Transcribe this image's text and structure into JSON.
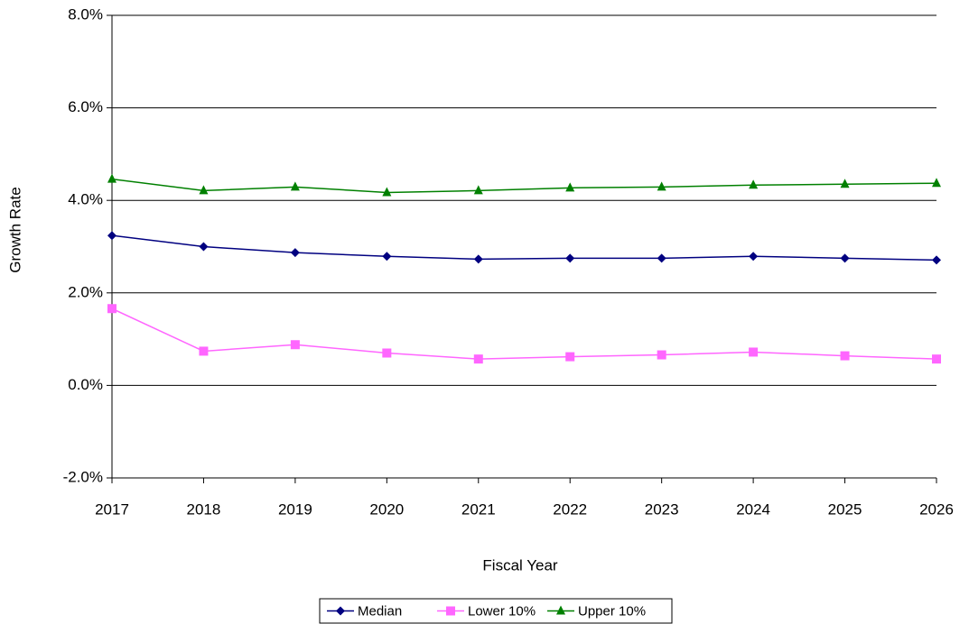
{
  "chart_data": {
    "type": "line",
    "x_label": "Fiscal Year",
    "y_label": "Growth Rate",
    "x": [
      2017,
      2018,
      2019,
      2020,
      2021,
      2022,
      2023,
      2024,
      2025,
      2026
    ],
    "xlim": [
      2017,
      2026
    ],
    "xticks": [
      2017,
      2018,
      2019,
      2020,
      2021,
      2022,
      2023,
      2024,
      2025,
      2026
    ],
    "ylim": [
      -2,
      8
    ],
    "yticks": [
      {
        "value": -2,
        "label": "-2.0%"
      },
      {
        "value": 0,
        "label": "0.0%"
      },
      {
        "value": 2,
        "label": "2.0%"
      },
      {
        "value": 4,
        "label": "4.0%"
      },
      {
        "value": 6,
        "label": "6.0%"
      },
      {
        "value": 8,
        "label": "8.0%"
      }
    ],
    "grid": true,
    "legend": "bottom",
    "series": [
      {
        "name": "Median",
        "color": "#000080",
        "marker": "diamond",
        "values": [
          3.24,
          3.0,
          2.87,
          2.79,
          2.73,
          2.75,
          2.75,
          2.79,
          2.75,
          2.71
        ]
      },
      {
        "name": "Lower 10%",
        "color": "#ff66ff",
        "marker": "square",
        "values": [
          1.66,
          0.74,
          0.88,
          0.7,
          0.57,
          0.62,
          0.66,
          0.72,
          0.64,
          0.57
        ]
      },
      {
        "name": "Upper 10%",
        "color": "#008000",
        "marker": "triangle",
        "values": [
          4.46,
          4.21,
          4.29,
          4.17,
          4.21,
          4.27,
          4.29,
          4.33,
          4.35,
          4.37
        ]
      }
    ]
  }
}
